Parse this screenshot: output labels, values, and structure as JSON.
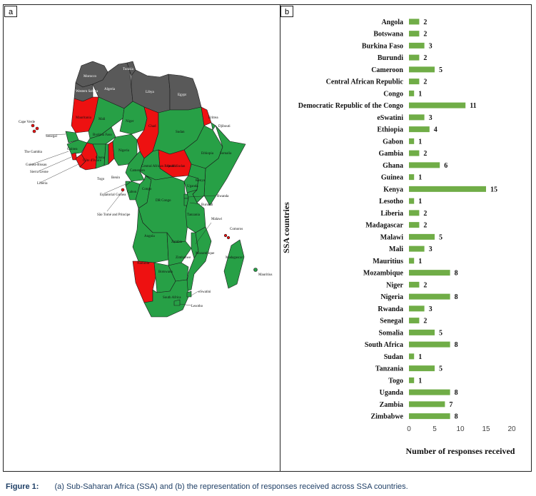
{
  "panels": {
    "a": "a",
    "b": "b"
  },
  "caption": {
    "label": "Figure 1:",
    "text": "(a) Sub-Saharan Africa (SSA) and (b) the representation of responses received across SSA countries."
  },
  "map": {
    "colors": {
      "responded": "#27a046",
      "no_response": "#ee1111",
      "non_ssa": "#595959",
      "border": "#1b1b1b"
    },
    "labels": {
      "morocco": "Morocco",
      "tunisia": "Tunisia",
      "algeria": "Algeria",
      "libya": "Libya",
      "egypt": "Egypt",
      "western_sahara": "Western Sahara",
      "mauritania": "Mauritania",
      "mali": "Mali",
      "niger": "Niger",
      "chad": "Chad",
      "sudan": "Sudan",
      "eritrea": "Eritrea",
      "djibouti": "Djibouti",
      "somalia": "Somalia",
      "ethiopia": "Ethiopia",
      "south_sudan": "South Sudan",
      "car": "Central African Republic",
      "cameroon": "Cameroon",
      "nigeria": "Nigeria",
      "burkina_faso": "Burkina Faso",
      "guinea": "Guinea",
      "cote_divoire": "Côte d'Ivoire",
      "ghana": "Ghana",
      "senegal": "Senegal",
      "cape_verde": "Cape Verde",
      "the_gambia": "The Gambia",
      "guinea_bissau": "Guinea-Bissau",
      "sierra_leone": "Sierra Leone",
      "liberia": "Liberia",
      "togo": "Togo",
      "benin": "Benin",
      "equatorial_guinea": "Equatorial Guinea",
      "sao_tome": "São Tomé and Principe",
      "gabon": "Gabon",
      "congo": "Congo",
      "dr_congo": "DR Congo",
      "uganda": "Uganda",
      "kenya": "Kenya",
      "rwanda": "Rwanda",
      "burundi": "Burundi",
      "tanzania": "Tanzania",
      "malawi": "Malawi",
      "comoros": "Comoros",
      "angola": "Angola",
      "zambia": "Zambia",
      "zimbabwe": "Zimbabwe",
      "mozambique": "Mozambique",
      "madagascar": "Madagascar",
      "mauritius": "Mauritius",
      "namibia": "Namibia",
      "botswana": "Botswana",
      "eswatini": "eSwatini",
      "south_africa": "South Africa",
      "lesotho": "Lesotho"
    }
  },
  "chart_data": {
    "type": "bar",
    "orientation": "horizontal",
    "categories": [
      "Angola",
      "Botswana",
      "Burkina Faso",
      "Burundi",
      "Cameroon",
      "Central African Republic",
      "Congo",
      "Democratic Republic of the Congo",
      "eSwatini",
      "Ethiopia",
      "Gabon",
      "Gambia",
      "Ghana",
      "Guinea",
      "Kenya",
      "Lesotho",
      "Liberia",
      "Madagascar",
      "Malawi",
      "Mali",
      "Mauritius",
      "Mozambique",
      "Niger",
      "Nigeria",
      "Rwanda",
      "Senegal",
      "Somalia",
      "South Africa",
      "Sudan",
      "Tanzania",
      "Togo",
      "Uganda",
      "Zambia",
      "Zimbabwe"
    ],
    "values": [
      2,
      2,
      3,
      2,
      5,
      2,
      1,
      11,
      3,
      4,
      1,
      2,
      6,
      1,
      15,
      1,
      2,
      2,
      5,
      3,
      1,
      8,
      2,
      8,
      3,
      2,
      5,
      8,
      1,
      5,
      1,
      8,
      7,
      8
    ],
    "xlabel": "Number of responses received",
    "ylabel": "SSA countries",
    "xlim": [
      0,
      20
    ],
    "xticks": [
      0,
      5,
      10,
      15,
      20
    ],
    "bar_color": "#70ad47",
    "grid": false
  }
}
